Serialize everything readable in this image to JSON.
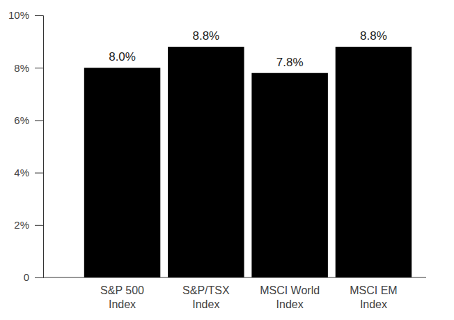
{
  "chart_data": {
    "type": "bar",
    "categories": [
      "S&P 500 Index",
      "S&P/TSX Index",
      "MSCI World Index",
      "MSCI EM Index"
    ],
    "values": [
      8.0,
      8.8,
      7.8,
      8.8
    ],
    "value_labels": [
      "8.0%",
      "8.8%",
      "7.8%",
      "8.8%"
    ],
    "data_labels": true,
    "color": "#000000",
    "ylim": [
      0,
      10
    ],
    "yticks": [
      0,
      {
        "value": 2,
        "label": "2%"
      },
      {
        "value": 4,
        "label": "4%"
      },
      {
        "value": 6,
        "label": "6%"
      },
      {
        "value": 8,
        "label": "8%"
      },
      {
        "value": 10,
        "label": "10%"
      }
    ],
    "grid": false
  }
}
